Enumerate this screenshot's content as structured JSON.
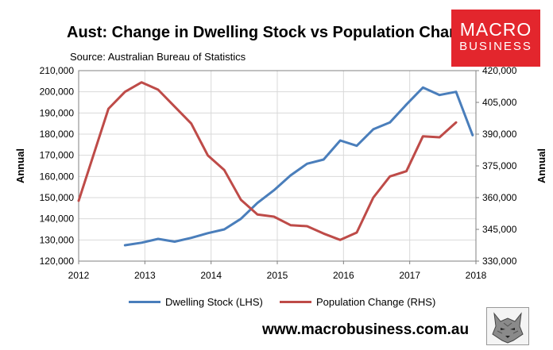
{
  "header": {
    "title": "Aust: Change in Dwelling Stock vs Population Change",
    "subtitle": "Source: Australian Bureau of Statistics"
  },
  "logo": {
    "line1": "MACRO",
    "line2": "BUSINESS",
    "bg_color": "#e3262d"
  },
  "footer": {
    "website": "www.macrobusiness.com.au"
  },
  "chart_data": {
    "type": "line",
    "title": "Aust: Change in Dwelling Stock vs Population Change",
    "xlabel": "",
    "ylabel_left": "Annual",
    "ylabel_right": "Annual",
    "xlim": [
      2012,
      2018
    ],
    "x_ticks": [
      "2012",
      "2013",
      "2014",
      "2015",
      "2016",
      "2017",
      "2018"
    ],
    "ylim_left": [
      120000,
      210000
    ],
    "y_ticks_left": [
      "120,000",
      "130,000",
      "140,000",
      "150,000",
      "160,000",
      "170,000",
      "180,000",
      "190,000",
      "200,000",
      "210,000"
    ],
    "ylim_right": [
      330000,
      420000
    ],
    "y_ticks_right": [
      "330,000",
      "345,000",
      "360,000",
      "375,000",
      "390,000",
      "405,000",
      "420,000"
    ],
    "grid": true,
    "legend_position": "bottom",
    "series": [
      {
        "name": "Dwelling Stock (LHS)",
        "axis": "left",
        "color": "#4a7ebb",
        "x": [
          2012.7,
          2012.95,
          2013.2,
          2013.45,
          2013.7,
          2013.95,
          2014.2,
          2014.45,
          2014.7,
          2014.95,
          2015.2,
          2015.45,
          2015.7,
          2015.95,
          2016.2,
          2016.45,
          2016.7,
          2016.95,
          2017.2,
          2017.45,
          2017.7,
          2017.95
        ],
        "values": [
          127500,
          128700,
          130500,
          129200,
          131000,
          133200,
          135000,
          140000,
          147500,
          153500,
          160500,
          166000,
          168000,
          177000,
          174500,
          182300,
          185500,
          194000,
          202000,
          198500,
          200000,
          179500
        ]
      },
      {
        "name": "Population Change (RHS)",
        "axis": "right",
        "color": "#be4b48",
        "x": [
          2012.0,
          2012.45,
          2012.7,
          2012.95,
          2013.2,
          2013.45,
          2013.7,
          2013.95,
          2014.2,
          2014.45,
          2014.7,
          2014.95,
          2015.2,
          2015.45,
          2015.7,
          2015.95,
          2016.2,
          2016.45,
          2016.7,
          2016.95,
          2017.2,
          2017.45,
          2017.7
        ],
        "values": [
          358500,
          402000,
          410000,
          414500,
          411000,
          403000,
          395000,
          380000,
          373000,
          359000,
          352000,
          351000,
          347000,
          346500,
          343000,
          340000,
          343500,
          360000,
          370000,
          372500,
          389000,
          388500,
          395500
        ]
      }
    ]
  }
}
